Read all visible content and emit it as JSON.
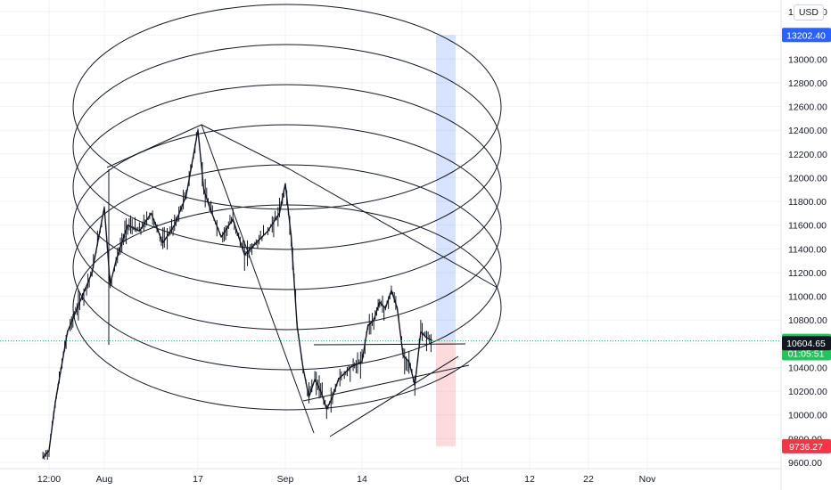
{
  "currency_label": "USD",
  "chart_data": {
    "type": "candlestick",
    "title": "",
    "xlabel": "",
    "ylabel": "",
    "ylim": [
      9600,
      13400
    ],
    "x_ticks": [
      "12:00",
      "Aug",
      "17",
      "Sep",
      "14",
      "Oct",
      "12",
      "22",
      "Nov"
    ],
    "y_ticks": [
      9600,
      9800,
      10000,
      10200,
      10400,
      10600,
      10800,
      11000,
      11200,
      11400,
      11600,
      11800,
      12000,
      12200,
      12400,
      12600,
      12800,
      13000,
      13200,
      13400
    ],
    "y_tick_labels": [
      "9600.00",
      "9800.00",
      "10000.00",
      "10200.00",
      "10400.00",
      "10600.00",
      "10800.00",
      "11000.00",
      "11200.00",
      "11400.00",
      "11600.00",
      "11800.00",
      "12000.00",
      "12200.00",
      "12400.00",
      "12600.00",
      "12800.00",
      "13000.00",
      "13200.00",
      "13400.00"
    ],
    "price_series": [
      {
        "t": "Jul 27 00:00",
        "price": 9640
      },
      {
        "t": "Jul 27 12:00",
        "price": 9700
      },
      {
        "t": "Jul 28",
        "price": 10100
      },
      {
        "t": "Jul 29",
        "price": 10700
      },
      {
        "t": "Jul 30",
        "price": 10950
      },
      {
        "t": "Jul 31",
        "price": 11200
      },
      {
        "t": "Aug 1",
        "price": 11750
      },
      {
        "t": "Aug 2",
        "price": 11100
      },
      {
        "t": "Aug 3",
        "price": 11300
      },
      {
        "t": "Aug 5",
        "price": 11600
      },
      {
        "t": "Aug 7",
        "price": 11550
      },
      {
        "t": "Aug 9",
        "price": 11700
      },
      {
        "t": "Aug 11",
        "price": 11450
      },
      {
        "t": "Aug 13",
        "price": 11600
      },
      {
        "t": "Aug 15",
        "price": 11850
      },
      {
        "t": "Aug 17",
        "price": 12400
      },
      {
        "t": "Aug 18",
        "price": 11900
      },
      {
        "t": "Aug 19",
        "price": 11750
      },
      {
        "t": "Aug 21",
        "price": 11500
      },
      {
        "t": "Aug 23",
        "price": 11650
      },
      {
        "t": "Aug 25",
        "price": 11350
      },
      {
        "t": "Aug 27",
        "price": 11450
      },
      {
        "t": "Aug 29",
        "price": 11550
      },
      {
        "t": "Aug 31",
        "price": 11700
      },
      {
        "t": "Sep 1",
        "price": 11950
      },
      {
        "t": "Sep 2",
        "price": 11500
      },
      {
        "t": "Sep 3",
        "price": 10750
      },
      {
        "t": "Sep 4",
        "price": 10400
      },
      {
        "t": "Sep 5",
        "price": 10150
      },
      {
        "t": "Sep 6",
        "price": 10300
      },
      {
        "t": "Sep 7",
        "price": 10200
      },
      {
        "t": "Sep 8",
        "price": 10050
      },
      {
        "t": "Sep 9",
        "price": 10150
      },
      {
        "t": "Sep 10",
        "price": 10300
      },
      {
        "t": "Sep 12",
        "price": 10400
      },
      {
        "t": "Sep 14",
        "price": 10450
      },
      {
        "t": "Sep 15",
        "price": 10750
      },
      {
        "t": "Sep 16",
        "price": 10800
      },
      {
        "t": "Sep 17",
        "price": 10950
      },
      {
        "t": "Sep 18",
        "price": 10900
      },
      {
        "t": "Sep 19",
        "price": 11050
      },
      {
        "t": "Sep 20",
        "price": 10900
      },
      {
        "t": "Sep 21",
        "price": 10500
      },
      {
        "t": "Sep 22",
        "price": 10450
      },
      {
        "t": "Sep 23",
        "price": 10250
      },
      {
        "t": "Sep 24",
        "price": 10700
      },
      {
        "t": "Sep 25",
        "price": 10650
      },
      {
        "t": "Sep 26",
        "price": 10625
      }
    ],
    "price_labels": [
      {
        "name": "projection-top",
        "value": "13202.40",
        "price": 13202.4,
        "color": "#2962ff"
      },
      {
        "name": "last-price",
        "value": "10624.42",
        "price": 10624.42,
        "color": "#22c55e"
      },
      {
        "name": "countdown",
        "value": "01:05:51",
        "price": 10520,
        "color": "#22c55e"
      },
      {
        "name": "crosshair",
        "value": "10604.65",
        "price": 10604.65,
        "color": "#131722"
      },
      {
        "name": "projection-bottom",
        "value": "9736.27",
        "price": 9736.27,
        "color": "#f23645"
      }
    ],
    "projection": {
      "top": 13202.4,
      "entry": 10624.42,
      "bottom": 9736.27,
      "upper_color": "#2962ff",
      "lower_color": "#f23645"
    },
    "grid": true
  }
}
